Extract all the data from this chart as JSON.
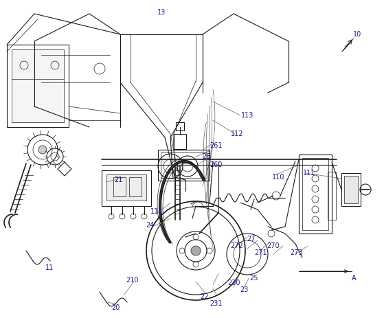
{
  "bg_color": "#ffffff",
  "line_color": "#1a1a1a",
  "label_color": "#1a1a8c",
  "fig_width": 5.59,
  "fig_height": 4.63,
  "dpi": 100,
  "label_fs": 7.0
}
